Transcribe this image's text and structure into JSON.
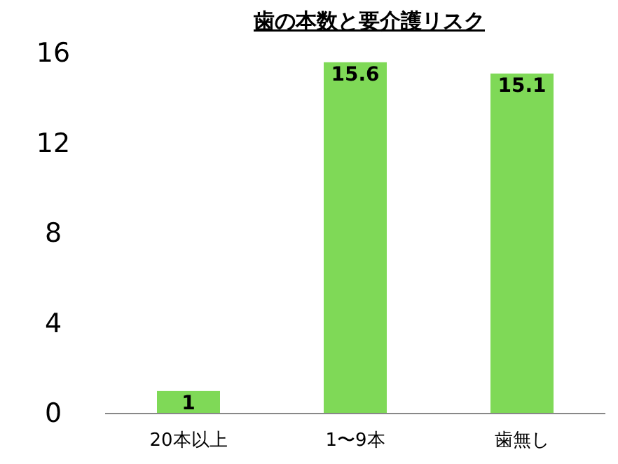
{
  "chart_data": {
    "type": "bar",
    "title": "歯の本数と要介護リスク",
    "categories": [
      "20本以上",
      "1〜9本",
      "歯無し"
    ],
    "values": [
      1,
      15.6,
      15.1
    ],
    "color": "#7fd957",
    "ylim": [
      0,
      16
    ],
    "yticks": [
      0,
      4,
      8,
      12,
      16
    ],
    "data_labels": true
  }
}
